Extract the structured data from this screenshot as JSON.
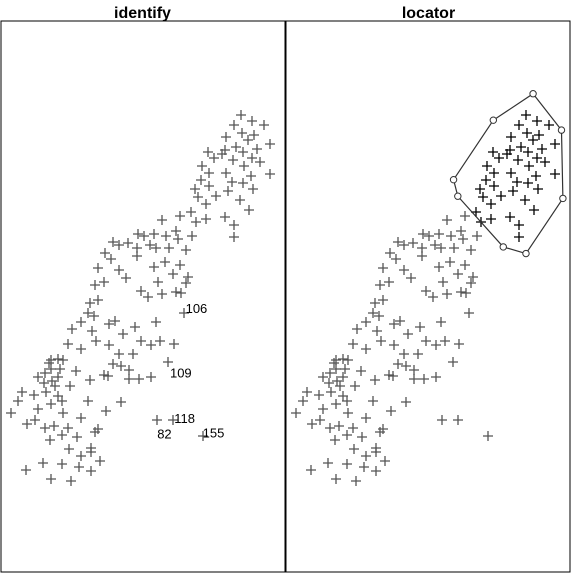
{
  "chart_data": [
    {
      "type": "scatter",
      "title": "identify",
      "xlim": [
        0,
        100
      ],
      "ylim": [
        0,
        100
      ],
      "point_color": "#555555",
      "labels": [
        {
          "text": "106",
          "x": 65,
          "y": 47.0
        },
        {
          "text": "109",
          "x": 59.5,
          "y": 35.3
        },
        {
          "text": "118",
          "x": 61,
          "y": 27.0
        },
        {
          "text": "82",
          "x": 55,
          "y": 24.2
        },
        {
          "text": "155",
          "x": 71,
          "y": 24.4
        }
      ]
    },
    {
      "type": "scatter",
      "title": "locator",
      "xlim": [
        0,
        100
      ],
      "ylim": [
        0,
        100
      ],
      "point_color": "#555555",
      "selected_color": "#000000",
      "polygon": [
        {
          "x": 87,
          "y": 86.8
        },
        {
          "x": 97,
          "y": 80.2
        },
        {
          "x": 97.5,
          "y": 67.8
        },
        {
          "x": 84.5,
          "y": 57.8
        },
        {
          "x": 76.5,
          "y": 59.0
        },
        {
          "x": 60.5,
          "y": 68.2
        },
        {
          "x": 59,
          "y": 71.2
        },
        {
          "x": 73,
          "y": 82.0
        }
      ]
    }
  ]
}
